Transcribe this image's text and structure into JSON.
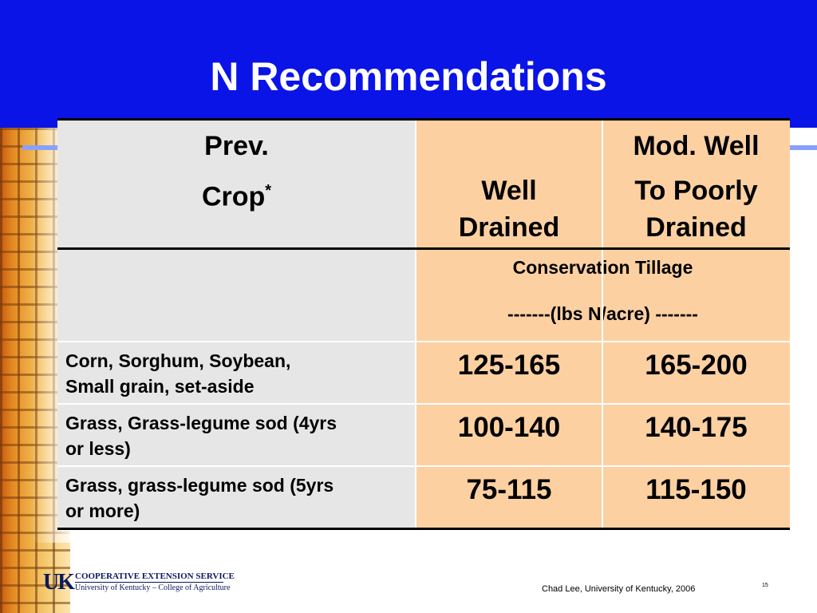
{
  "slide": {
    "title": "N Recommendations",
    "colors": {
      "header_blue": "#0b14e6",
      "peach": "#fdd0a2",
      "gray": "#e6e6e6"
    }
  },
  "table": {
    "header": {
      "prev_line1": "Prev.",
      "prev_line2": "Crop",
      "prev_note_mark": "*",
      "col2_line1": "Well",
      "col2_line2": "Drained",
      "col3_line1": "Mod. Well",
      "col3_line2": "To Poorly",
      "col3_line3": "Drained"
    },
    "subheader": {
      "tillage": "Conservation Tillage",
      "units": "-------(lbs N/acre) -------"
    },
    "rows": [
      {
        "crop_line1": "Corn, Sorghum, Soybean,",
        "crop_line2": "Small grain, set-aside",
        "well_drained": "125-165",
        "poorly_drained": "165-200"
      },
      {
        "crop_line1": "Grass, Grass-legume sod (4yrs",
        "crop_line2": "or less)",
        "well_drained": "100-140",
        "poorly_drained": "140-175"
      },
      {
        "crop_line1": "Grass, grass-legume sod (5yrs",
        "crop_line2": "or more)",
        "well_drained": "75-115",
        "poorly_drained": "115-150"
      }
    ]
  },
  "footer": {
    "logo_uk": "UK",
    "logo_line1": "COOPERATIVE EXTENSION SERVICE",
    "logo_line2": "University of Kentucky – College of Agriculture",
    "credit": "Chad Lee, University of Kentucky, 2006",
    "page_number": "15"
  }
}
